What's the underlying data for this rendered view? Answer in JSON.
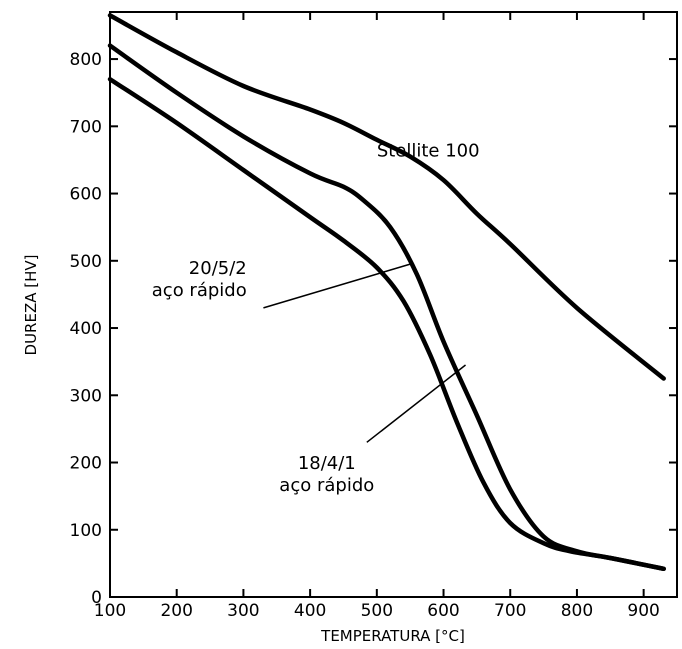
{
  "chart_data": {
    "type": "line",
    "xlabel": "TEMPERATURA [°C]",
    "ylabel": "DUREZA [HV]",
    "xlim": [
      100,
      950
    ],
    "ylim": [
      0,
      870
    ],
    "xticks": [
      100,
      200,
      300,
      400,
      500,
      600,
      700,
      800,
      900
    ],
    "yticks": [
      0,
      100,
      200,
      300,
      400,
      500,
      600,
      700,
      800
    ],
    "grid": false,
    "series": [
      {
        "name": "Stellite 100",
        "x": [
          100,
          200,
          300,
          400,
          450,
          500,
          550,
          600,
          650,
          700,
          800,
          930
        ],
        "y": [
          865,
          810,
          760,
          725,
          705,
          680,
          655,
          620,
          570,
          525,
          430,
          325
        ]
      },
      {
        "name": "20/5/2 aço rápido",
        "x": [
          100,
          200,
          300,
          400,
          450,
          480,
          520,
          560,
          600,
          650,
          700,
          750,
          800,
          850,
          930
        ],
        "y": [
          820,
          750,
          685,
          630,
          610,
          590,
          550,
          480,
          380,
          270,
          160,
          90,
          68,
          58,
          42
        ]
      },
      {
        "name": "18/4/1 aço rápido",
        "x": [
          100,
          200,
          300,
          400,
          450,
          500,
          540,
          580,
          620,
          660,
          700,
          750,
          790,
          850,
          930
        ],
        "y": [
          770,
          705,
          635,
          565,
          530,
          490,
          440,
          360,
          260,
          170,
          110,
          80,
          68,
          58,
          42
        ]
      }
    ],
    "annotations": [
      {
        "lines": [
          "Stellite 100"
        ],
        "series": "Stellite 100",
        "text_at": [
          500,
          655
        ]
      },
      {
        "lines": [
          "20/5/2",
          "aço rápido"
        ],
        "series": "20/5/2 aço rápido",
        "text_at": [
          305,
          480
        ],
        "text_anchor": "end",
        "leader_from": [
          330,
          430
        ],
        "leader_to": [
          550,
          495
        ]
      },
      {
        "lines": [
          "18/4/1",
          "aço rápido"
        ],
        "series": "18/4/1 aço rápido",
        "text_at": [
          425,
          190
        ],
        "text_anchor": "middle",
        "leader_from": [
          485,
          230
        ],
        "leader_to": [
          633,
          345
        ]
      }
    ]
  }
}
